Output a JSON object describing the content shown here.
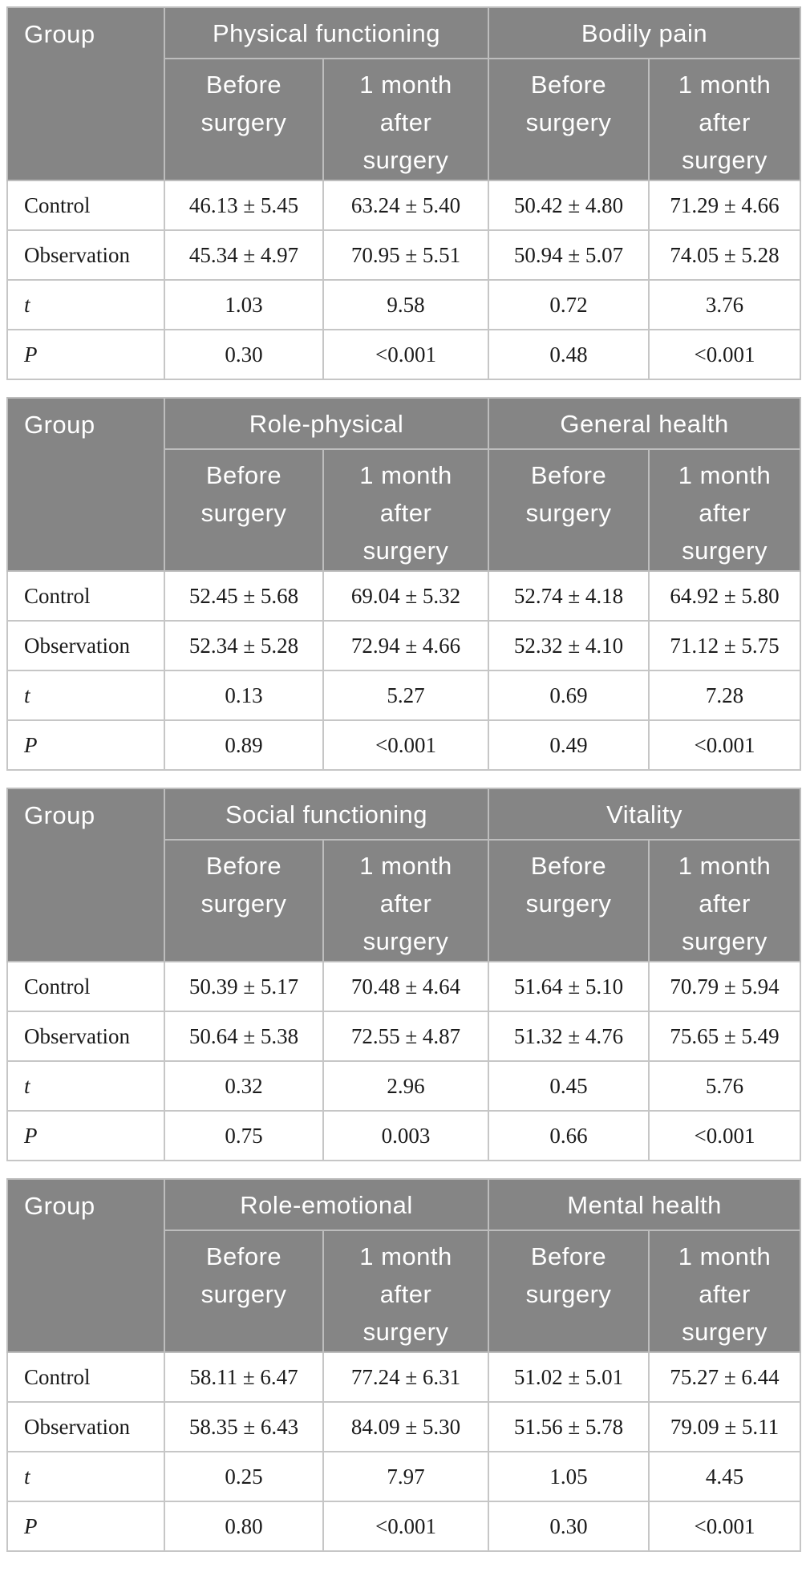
{
  "colors": {
    "header_background": "#858585",
    "header_text": "#ffffff",
    "body_text": "#1b1b1b",
    "grid_line": "#c6c6c6",
    "page_background": "#ffffff"
  },
  "tables": [
    {
      "group_label": "Group",
      "categories": [
        "Physical functioning",
        "Bodily pain"
      ],
      "subheaders": [
        "Before surgery",
        "1 month after surgery",
        "Before surgery",
        "1 month after surgery"
      ],
      "rows": [
        {
          "label": "Control",
          "italic": false,
          "values": [
            "46.13 ± 5.45",
            "63.24 ± 5.40",
            "50.42 ± 4.80",
            "71.29 ± 4.66"
          ]
        },
        {
          "label": "Observation",
          "italic": false,
          "values": [
            "45.34 ± 4.97",
            "70.95 ± 5.51",
            "50.94 ± 5.07",
            "74.05 ± 5.28"
          ]
        },
        {
          "label": "t",
          "italic": true,
          "values": [
            "1.03",
            "9.58",
            "0.72",
            "3.76"
          ]
        },
        {
          "label": "P",
          "italic": true,
          "values": [
            "0.30",
            "<0.001",
            "0.48",
            "<0.001"
          ]
        }
      ]
    },
    {
      "group_label": "Group",
      "categories": [
        "Role-physical",
        "General health"
      ],
      "subheaders": [
        "Before surgery",
        "1 month after surgery",
        "Before surgery",
        "1 month after surgery"
      ],
      "rows": [
        {
          "label": "Control",
          "italic": false,
          "values": [
            "52.45 ± 5.68",
            "69.04 ± 5.32",
            "52.74 ± 4.18",
            "64.92 ± 5.80"
          ]
        },
        {
          "label": "Observation",
          "italic": false,
          "values": [
            "52.34 ± 5.28",
            "72.94 ± 4.66",
            "52.32 ± 4.10",
            "71.12 ± 5.75"
          ]
        },
        {
          "label": "t",
          "italic": true,
          "values": [
            "0.13",
            "5.27",
            "0.69",
            "7.28"
          ]
        },
        {
          "label": "P",
          "italic": true,
          "values": [
            "0.89",
            "<0.001",
            "0.49",
            "<0.001"
          ]
        }
      ]
    },
    {
      "group_label": "Group",
      "categories": [
        "Social functioning",
        "Vitality"
      ],
      "subheaders": [
        "Before surgery",
        "1 month after surgery",
        "Before surgery",
        "1 month after surgery"
      ],
      "rows": [
        {
          "label": "Control",
          "italic": false,
          "values": [
            "50.39 ± 5.17",
            "70.48 ± 4.64",
            "51.64 ± 5.10",
            "70.79 ± 5.94"
          ]
        },
        {
          "label": "Observation",
          "italic": false,
          "values": [
            "50.64 ± 5.38",
            "72.55 ± 4.87",
            "51.32 ± 4.76",
            "75.65 ± 5.49"
          ]
        },
        {
          "label": "t",
          "italic": true,
          "values": [
            "0.32",
            "2.96",
            "0.45",
            "5.76"
          ]
        },
        {
          "label": "P",
          "italic": true,
          "values": [
            "0.75",
            "0.003",
            "0.66",
            "<0.001"
          ]
        }
      ]
    },
    {
      "group_label": "Group",
      "categories": [
        "Role-emotional",
        "Mental health"
      ],
      "subheaders": [
        "Before surgery",
        "1 month after surgery",
        "Before surgery",
        "1 month after surgery"
      ],
      "rows": [
        {
          "label": "Control",
          "italic": false,
          "values": [
            "58.11 ± 6.47",
            "77.24 ± 6.31",
            "51.02 ± 5.01",
            "75.27 ± 6.44"
          ]
        },
        {
          "label": "Observation",
          "italic": false,
          "values": [
            "58.35 ± 6.43",
            "84.09 ± 5.30",
            "51.56 ± 5.78",
            "79.09 ± 5.11"
          ]
        },
        {
          "label": "t",
          "italic": true,
          "values": [
            "0.25",
            "7.97",
            "1.05",
            "4.45"
          ]
        },
        {
          "label": "P",
          "italic": true,
          "values": [
            "0.80",
            "<0.001",
            "0.30",
            "<0.001"
          ]
        }
      ]
    }
  ]
}
